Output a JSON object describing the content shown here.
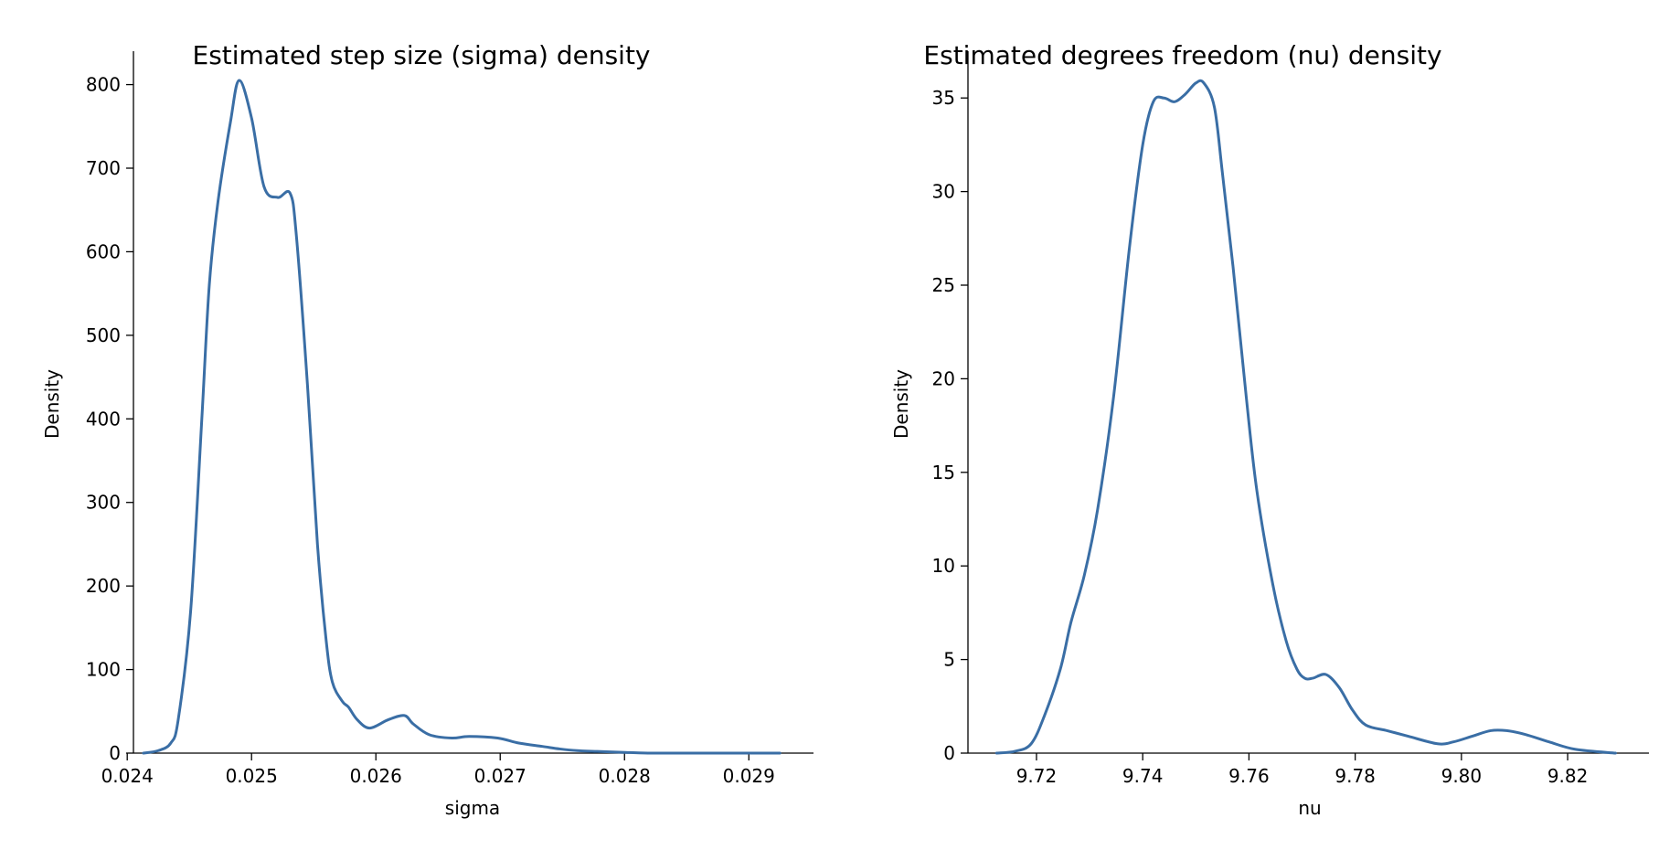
{
  "chart_data": [
    {
      "type": "line",
      "title": "Estimated step size (sigma) density",
      "xlabel": "sigma",
      "ylabel": "Density",
      "xlim": [
        0.02405,
        0.02952
      ],
      "ylim": [
        0,
        840
      ],
      "xticks": [
        0.024,
        0.025,
        0.026,
        0.027,
        0.028,
        0.029
      ],
      "xtick_labels": [
        "0.024",
        "0.025",
        "0.026",
        "0.027",
        "0.028",
        "0.029"
      ],
      "yticks": [
        0,
        100,
        200,
        300,
        400,
        500,
        600,
        700,
        800
      ],
      "ytick_labels": [
        "0",
        "100",
        "200",
        "300",
        "400",
        "500",
        "600",
        "700",
        "800"
      ],
      "grid": false,
      "series": [
        {
          "color": "#3a6ea5",
          "x": [
            0.02413,
            0.02425,
            0.02435,
            0.02441,
            0.02451,
            0.0246,
            0.02466,
            0.02473,
            0.02483,
            0.0249,
            0.025,
            0.0251,
            0.02521,
            0.02531,
            0.02536,
            0.02545,
            0.02553,
            0.0256,
            0.02565,
            0.02573,
            0.02578,
            0.02585,
            0.02595,
            0.0261,
            0.02623,
            0.0263,
            0.02643,
            0.02661,
            0.02675,
            0.02698,
            0.02715,
            0.02734,
            0.02748,
            0.02762,
            0.02778,
            0.02798,
            0.0282,
            0.0284,
            0.0286,
            0.0288,
            0.029,
            0.02925
          ],
          "y": [
            0,
            3,
            12,
            40,
            170,
            400,
            560,
            660,
            755,
            805,
            760,
            678,
            665,
            670,
            620,
            440,
            250,
            135,
            85,
            62,
            55,
            40,
            30,
            40,
            45,
            35,
            22,
            18,
            20,
            18,
            12,
            8,
            5,
            3,
            2,
            1,
            0,
            0,
            0,
            0,
            0,
            0
          ]
        }
      ]
    },
    {
      "type": "line",
      "title": "Estimated degrees freedom (nu) density",
      "xlabel": "nu",
      "ylabel": "Density",
      "xlim": [
        9.7071,
        9.8353
      ],
      "ylim": [
        0,
        37.5
      ],
      "xticks": [
        9.72,
        9.74,
        9.76,
        9.78,
        9.8,
        9.82
      ],
      "xtick_labels": [
        "9.72",
        "9.74",
        "9.76",
        "9.78",
        "9.80",
        "9.82"
      ],
      "yticks": [
        0,
        5,
        10,
        15,
        20,
        25,
        30,
        35
      ],
      "ytick_labels": [
        "0",
        "5",
        "10",
        "15",
        "20",
        "25",
        "30",
        "35"
      ],
      "grid": false,
      "series": [
        {
          "color": "#3a6ea5",
          "x": [
            9.7125,
            9.716,
            9.719,
            9.7215,
            9.7245,
            9.7265,
            9.729,
            9.7315,
            9.7345,
            9.7375,
            9.74,
            9.742,
            9.744,
            9.746,
            9.748,
            9.75,
            9.7515,
            9.7535,
            9.755,
            9.757,
            9.7595,
            9.7615,
            9.7645,
            9.767,
            9.769,
            9.7705,
            9.772,
            9.7745,
            9.777,
            9.7795,
            9.782,
            9.786,
            9.79,
            9.7955,
            9.7985,
            9.802,
            9.8055,
            9.8085,
            9.812,
            9.8165,
            9.8215,
            9.829
          ],
          "y": [
            0,
            0.1,
            0.5,
            2,
            4.5,
            7,
            9.5,
            13,
            19,
            27,
            32.5,
            34.8,
            35,
            34.8,
            35.2,
            35.8,
            35.8,
            34.5,
            31,
            26,
            19,
            14,
            9,
            6,
            4.5,
            4,
            4,
            4.2,
            3.5,
            2.3,
            1.5,
            1.2,
            0.9,
            0.5,
            0.6,
            0.9,
            1.2,
            1.2,
            1.0,
            0.6,
            0.2,
            0
          ]
        }
      ]
    }
  ]
}
